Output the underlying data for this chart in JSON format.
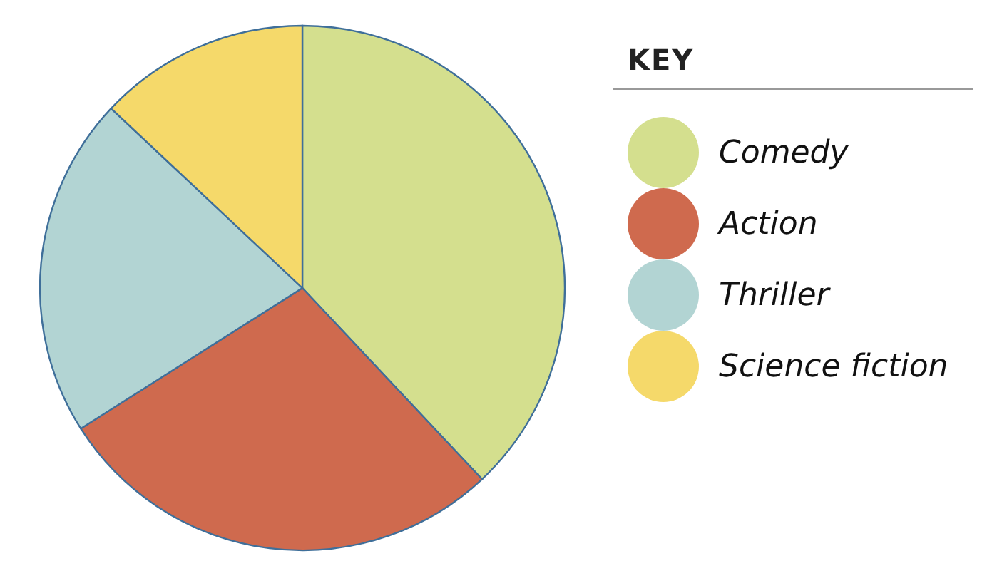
{
  "chart_data": {
    "type": "pie",
    "legend_title": "KEY",
    "legend": "right",
    "categories": [
      "Comedy",
      "Action",
      "Thriller",
      "Science fiction"
    ],
    "values": [
      38,
      28,
      21,
      13
    ],
    "colors": [
      "#d4df8e",
      "#cf6a4e",
      "#b2d4d3",
      "#f5d96a"
    ]
  }
}
